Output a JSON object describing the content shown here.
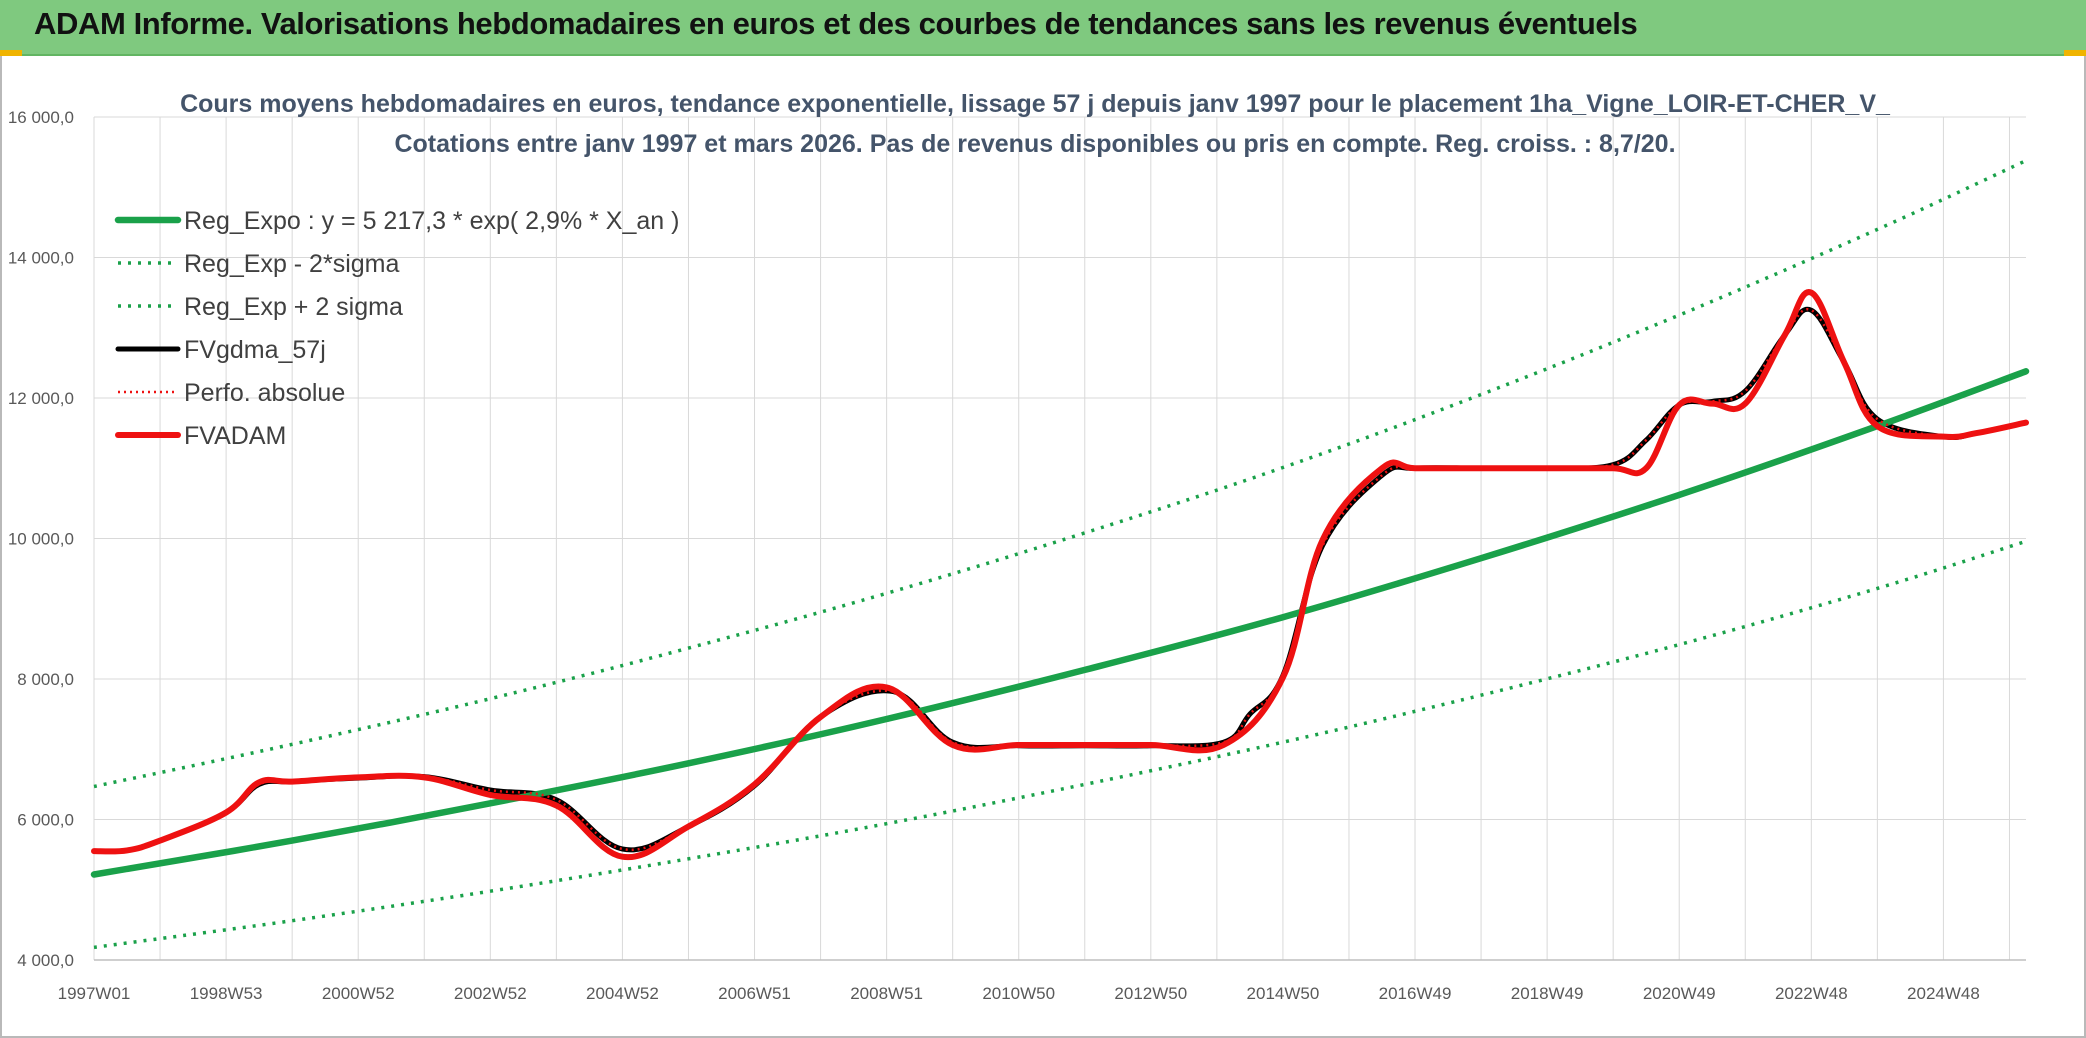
{
  "header": {
    "title": "ADAM Informe. Valorisations hebdomadaires en euros et des courbes de tendances sans les revenus éventuels"
  },
  "colors": {
    "header_bg": "#7fc97f",
    "green": "#1aa14a",
    "black": "#000000",
    "red": "#ee1111",
    "dotted_red": "#ee1111",
    "grid": "#d9d9d9"
  },
  "chart_data": {
    "type": "line",
    "title": "Cours moyens hebdomadaires en euros, tendance exponentielle, lissage 57 j depuis janv 1997 pour le placement 1ha_Vigne_LOIR-ET-CHER_V_",
    "subtitle": "Cotations entre janv 1997 et mars 2026. Pas de revenus disponibles ou pris en compte. Reg. croiss. : 8,7/20.",
    "xlabel": "",
    "ylabel": "",
    "x_range": [
      1997.0,
      2026.25
    ],
    "ylim": [
      4000,
      16000
    ],
    "y_ticks": [
      4000,
      6000,
      8000,
      10000,
      12000,
      14000,
      16000
    ],
    "y_tick_labels": [
      "4 000,0",
      "6 000,0",
      "8 000,0",
      "10 000,0",
      "12 000,0",
      "14 000,0",
      "16 000,0"
    ],
    "x_ticks": [
      1997.0,
      1999.0,
      2001.0,
      2003.0,
      2005.0,
      2007.0,
      2009.0,
      2011.0,
      2013.0,
      2015.0,
      2017.0,
      2019.0,
      2021.0,
      2023.0,
      2025.0
    ],
    "x_tick_labels": [
      "1997W01",
      "1998W53",
      "2000W52",
      "2002W52",
      "2004W52",
      "2006W51",
      "2008W51",
      "2010W50",
      "2012W50",
      "2014W50",
      "2016W49",
      "2018W49",
      "2020W49",
      "2022W48",
      "2024W48"
    ],
    "grid": true,
    "legend_position": "top-left",
    "series": [
      {
        "name": "Reg_Expo : y = 5 217,3 * exp( 2,9% *  X_an )",
        "style": "solid-thick",
        "color": "#1aa14a",
        "x": [
          1997.0,
          2000.0,
          2003.0,
          2006.0,
          2009.0,
          2012.0,
          2015.0,
          2018.0,
          2021.0,
          2024.0,
          2026.25
        ],
        "values": [
          5217,
          5700,
          6230,
          6800,
          7430,
          8130,
          8880,
          9720,
          10620,
          11600,
          12380
        ]
      },
      {
        "name": "Reg_Exp - 2*sigma",
        "style": "dotted",
        "color": "#1aa14a",
        "x": [
          1997.0,
          2000.0,
          2003.0,
          2006.0,
          2009.0,
          2012.0,
          2015.0,
          2018.0,
          2021.0,
          2024.0,
          2026.25
        ],
        "values": [
          4180,
          4560,
          4980,
          5440,
          5940,
          6500,
          7100,
          7770,
          8490,
          9290,
          9960
        ]
      },
      {
        "name": "Reg_Exp + 2 sigma",
        "style": "dotted",
        "color": "#1aa14a",
        "x": [
          1997.0,
          2000.0,
          2003.0,
          2006.0,
          2009.0,
          2012.0,
          2015.0,
          2018.0,
          2021.0,
          2024.0,
          2026.25
        ],
        "values": [
          6470,
          7070,
          7720,
          8440,
          9220,
          10080,
          11010,
          12050,
          13180,
          14400,
          15380
        ]
      },
      {
        "name": "FVgdma_57j",
        "style": "solid",
        "color": "#000000",
        "x": [
          1997.0,
          1997.5,
          1998.0,
          1999.0,
          1999.5,
          2000.0,
          2001.0,
          2002.0,
          2003.0,
          2004.0,
          2005.0,
          2006.0,
          2007.0,
          2008.0,
          2009.1,
          2010.0,
          2011.0,
          2012.0,
          2013.0,
          2014.1,
          2014.5,
          2015.0,
          2015.6,
          2016.5,
          2017.0,
          2018.0,
          2019.0,
          2020.0,
          2020.5,
          2021.0,
          2021.5,
          2022.0,
          2022.6,
          2023.0,
          2023.5,
          2024.0,
          2025.0,
          2025.5,
          2026.25
        ],
        "values": [
          5550,
          5560,
          5700,
          6100,
          6500,
          6540,
          6590,
          6610,
          6420,
          6280,
          5580,
          5900,
          6480,
          7460,
          7820,
          7100,
          7050,
          7050,
          7050,
          7100,
          7500,
          8050,
          9900,
          10900,
          11000,
          11000,
          11000,
          11050,
          11400,
          11900,
          11950,
          12100,
          12900,
          13250,
          12500,
          11700,
          11450,
          11500,
          11650
        ]
      },
      {
        "name": "Perfo. absolue",
        "style": "dotted",
        "color": "#ee1111",
        "x": [
          1997.0,
          1997.5,
          1998.0,
          1999.0,
          1999.5,
          2000.0,
          2001.0,
          2002.0,
          2003.0,
          2004.0,
          2005.0,
          2006.0,
          2007.0,
          2008.0,
          2009.1,
          2010.0,
          2011.0,
          2012.0,
          2013.0,
          2014.1,
          2014.5,
          2015.0,
          2015.6,
          2016.5,
          2017.0,
          2018.0,
          2019.0,
          2020.0,
          2020.5,
          2021.0,
          2021.5,
          2022.0,
          2022.6,
          2023.0,
          2023.5,
          2024.0,
          2025.0,
          2025.5,
          2026.25
        ],
        "values": [
          5550,
          5560,
          5700,
          6100,
          6500,
          6540,
          6590,
          6610,
          6420,
          6280,
          5580,
          5900,
          6480,
          7460,
          7820,
          7100,
          7050,
          7050,
          7050,
          7100,
          7500,
          8050,
          9900,
          10900,
          11000,
          11000,
          11000,
          11050,
          11400,
          11900,
          11950,
          12100,
          12900,
          13250,
          12500,
          11700,
          11450,
          11500,
          11650
        ]
      },
      {
        "name": "FVADAM",
        "style": "solid-thick",
        "color": "#ee1111",
        "x": [
          1997.0,
          1997.5,
          1998.0,
          1999.0,
          1999.5,
          2000.0,
          2001.0,
          2002.0,
          2003.0,
          2004.0,
          2005.0,
          2006.0,
          2007.0,
          2008.0,
          2009.0,
          2010.0,
          2011.0,
          2012.0,
          2013.0,
          2014.1,
          2015.0,
          2015.6,
          2016.5,
          2017.0,
          2018.0,
          2019.0,
          2020.0,
          2020.5,
          2021.0,
          2021.5,
          2022.0,
          2022.6,
          2023.0,
          2023.5,
          2024.0,
          2025.0,
          2025.5,
          2026.25
        ],
        "values": [
          5550,
          5560,
          5700,
          6100,
          6530,
          6540,
          6600,
          6600,
          6350,
          6200,
          5470,
          5900,
          6500,
          7460,
          7880,
          7060,
          7060,
          7060,
          7060,
          7060,
          8020,
          9980,
          11000,
          11000,
          11000,
          11000,
          11000,
          11000,
          11900,
          11920,
          11920,
          12900,
          13500,
          12500,
          11600,
          11450,
          11500,
          11650
        ]
      }
    ]
  }
}
